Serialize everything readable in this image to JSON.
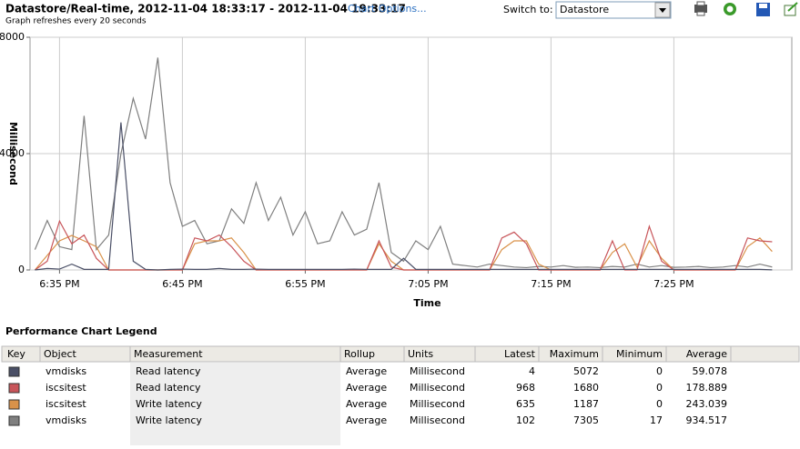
{
  "header": {
    "title": "Datastore/Real-time, 2012-11-04 18:33:17 - 2012-11-04 19:33:17",
    "link": "Chart Options...",
    "subtitle": "Graph refreshes every 20 seconds",
    "switch_label": "Switch to:",
    "switch_value": "Datastore"
  },
  "chart_data": {
    "type": "line",
    "ylabel": "Millisecond",
    "xlabel": "Time",
    "x": [
      1113,
      1114,
      1115,
      1116,
      1117,
      1118,
      1119,
      1120,
      1121,
      1122,
      1123,
      1124,
      1125,
      1126,
      1127,
      1128,
      1129,
      1130,
      1131,
      1132,
      1133,
      1134,
      1135,
      1136,
      1137,
      1138,
      1139,
      1140,
      1141,
      1142,
      1143,
      1144,
      1145,
      1146,
      1147,
      1148,
      1149,
      1150,
      1151,
      1152,
      1153,
      1154,
      1155,
      1156,
      1157,
      1158,
      1159,
      1160,
      1161,
      1162,
      1163,
      1164,
      1165,
      1166,
      1167,
      1168,
      1169,
      1170,
      1171,
      1172,
      1173
    ],
    "xlim": [
      1112.6,
      1174.6
    ],
    "xticks": [
      {
        "value": 1115,
        "label": "6:35 PM"
      },
      {
        "value": 1125,
        "label": "6:45 PM"
      },
      {
        "value": 1135,
        "label": "6:55 PM"
      },
      {
        "value": 1145,
        "label": "7:05 PM"
      },
      {
        "value": 1155,
        "label": "7:15 PM"
      },
      {
        "value": 1165,
        "label": "7:25 PM"
      }
    ],
    "ylim": [
      0,
      8000
    ],
    "yticks": [
      0,
      4000,
      8000
    ],
    "grid": true,
    "series": [
      {
        "color": "#4a4f66",
        "values": [
          0,
          50,
          30,
          200,
          20,
          20,
          20,
          5072,
          300,
          20,
          0,
          20,
          30,
          20,
          20,
          50,
          20,
          20,
          30,
          20,
          20,
          20,
          20,
          20,
          20,
          20,
          30,
          20,
          20,
          20,
          400,
          20,
          20,
          20,
          20,
          20,
          20,
          20,
          20,
          20,
          20,
          20,
          20,
          20,
          20,
          20,
          20,
          20,
          20,
          20,
          20,
          20,
          20,
          20,
          20,
          20,
          20,
          20,
          20,
          20,
          4
        ]
      },
      {
        "color": "#c8555a",
        "values": [
          0,
          300,
          1680,
          900,
          1200,
          400,
          0,
          0,
          0,
          0,
          0,
          0,
          0,
          1100,
          1000,
          1200,
          800,
          300,
          0,
          0,
          0,
          0,
          0,
          0,
          0,
          0,
          0,
          0,
          1000,
          100,
          0,
          0,
          0,
          0,
          0,
          0,
          0,
          0,
          1100,
          1300,
          900,
          0,
          0,
          0,
          0,
          0,
          0,
          1000,
          0,
          0,
          1500,
          300,
          0,
          0,
          0,
          0,
          0,
          0,
          1100,
          1000,
          968
        ]
      },
      {
        "color": "#d9924a",
        "values": [
          0,
          500,
          1000,
          1187,
          1000,
          800,
          0,
          0,
          0,
          0,
          0,
          0,
          0,
          900,
          1000,
          1000,
          1100,
          600,
          0,
          0,
          0,
          0,
          0,
          0,
          0,
          0,
          0,
          0,
          900,
          300,
          0,
          0,
          0,
          0,
          0,
          0,
          0,
          0,
          700,
          1000,
          1000,
          200,
          0,
          0,
          0,
          0,
          0,
          600,
          900,
          100,
          1000,
          400,
          0,
          0,
          0,
          0,
          0,
          0,
          800,
          1100,
          635
        ]
      },
      {
        "color": "#7f7f7f",
        "values": [
          700,
          1700,
          800,
          700,
          5300,
          700,
          1200,
          4000,
          5900,
          4500,
          7300,
          3000,
          1500,
          1700,
          900,
          1000,
          2100,
          1600,
          3000,
          1700,
          2500,
          1200,
          2000,
          900,
          1000,
          2000,
          1200,
          1400,
          3000,
          600,
          300,
          1000,
          700,
          1500,
          200,
          150,
          100,
          200,
          150,
          100,
          80,
          120,
          100,
          150,
          90,
          100,
          80,
          120,
          100,
          200,
          100,
          150,
          90,
          100,
          120,
          80,
          100,
          150,
          100,
          200,
          102
        ]
      }
    ]
  },
  "table": {
    "title": "Performance Chart Legend",
    "columns": [
      "Key",
      "Object",
      "Measurement",
      "Rollup",
      "Units",
      "Latest",
      "Maximum",
      "Minimum",
      "Average"
    ],
    "rows": [
      [
        "vmdisks",
        "Read latency",
        "Average",
        "Millisecond",
        4,
        5072,
        0,
        59.078
      ],
      [
        "iscsitest",
        "Read latency",
        "Average",
        "Millisecond",
        968,
        1680,
        0,
        178.889
      ],
      [
        "iscsitest",
        "Write latency",
        "Average",
        "Millisecond",
        635,
        1187,
        0,
        243.039
      ],
      [
        "vmdisks",
        "Write latency",
        "Average",
        "Millisecond",
        102,
        7305,
        17,
        934.517
      ]
    ]
  }
}
